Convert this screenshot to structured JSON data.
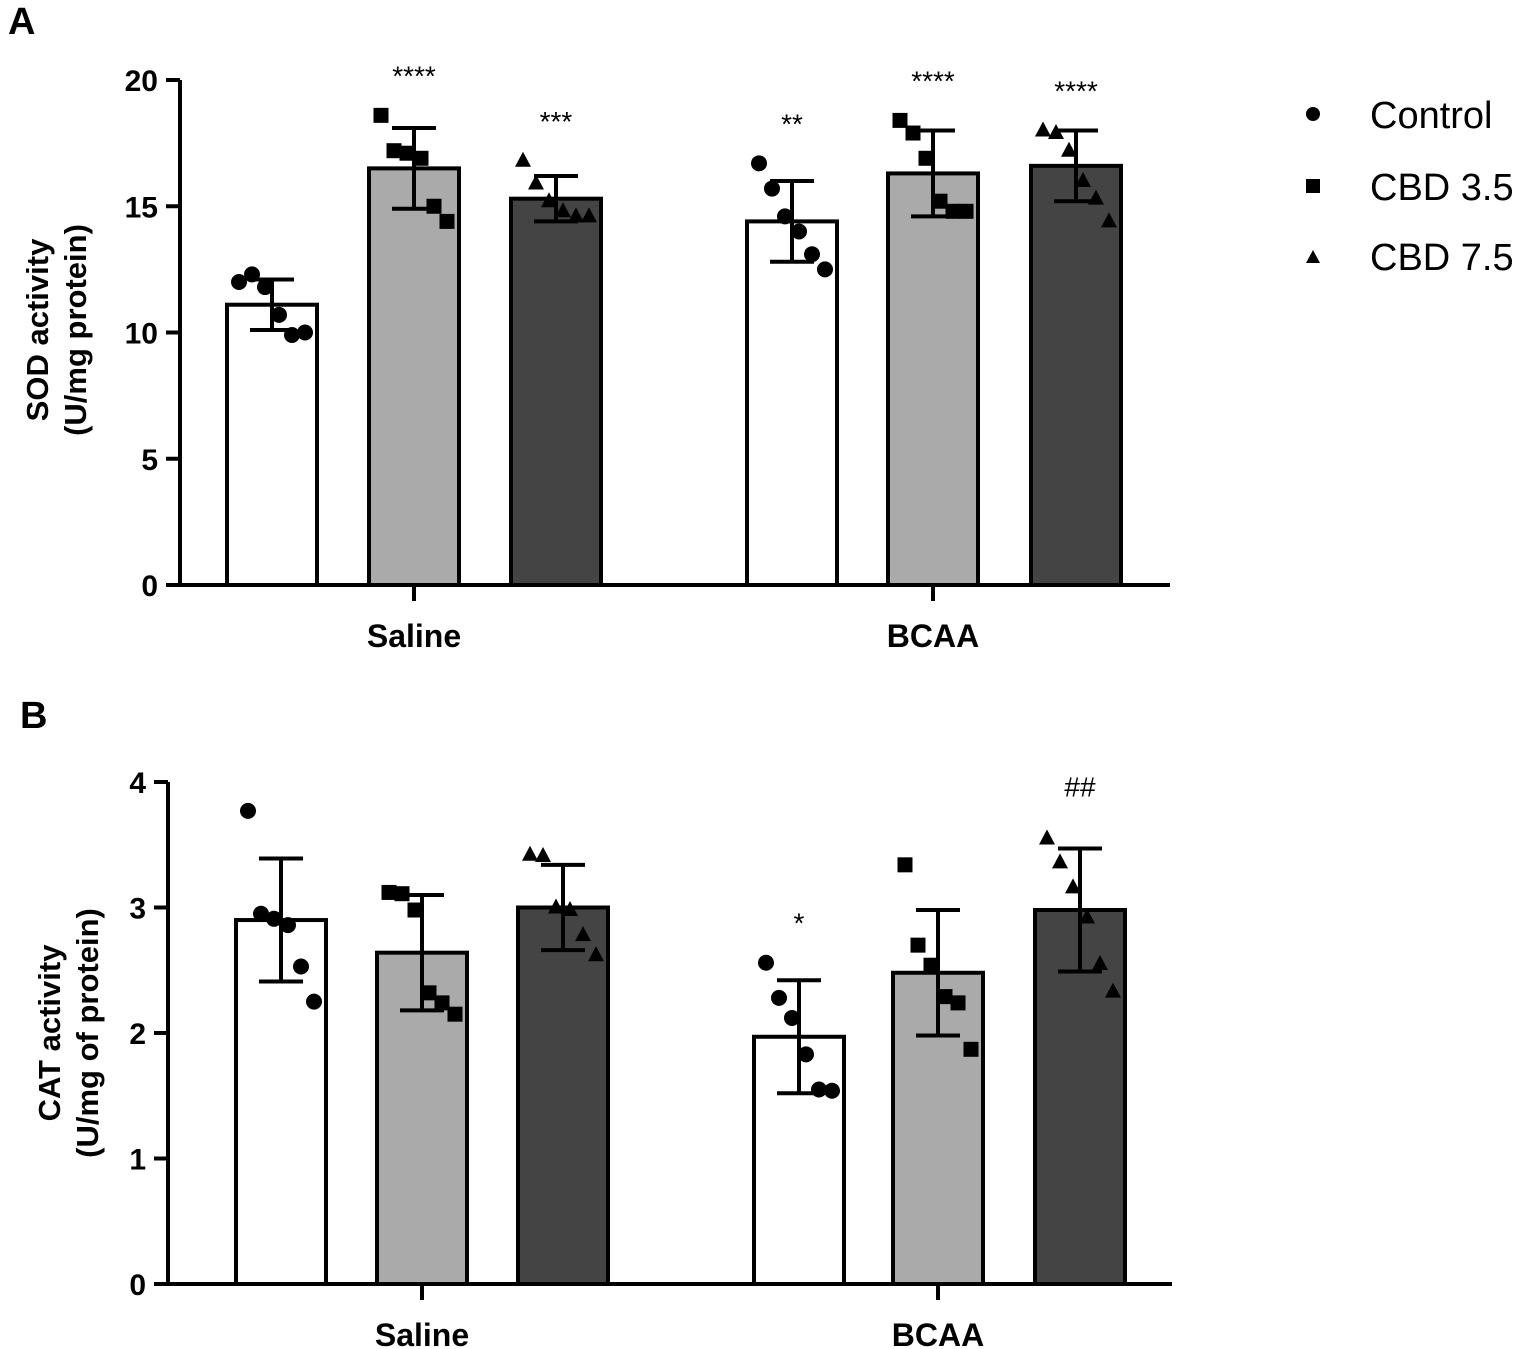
{
  "colors": {
    "control": "#ffffff",
    "cbd35": "#aaaaaa",
    "cbd75": "#444444",
    "stroke": "#000000"
  },
  "legend": {
    "placement": "top-right",
    "items": [
      {
        "label": "Control",
        "marker": "circle"
      },
      {
        "label": "CBD 3.5",
        "marker": "square"
      },
      {
        "label": "CBD 7.5",
        "marker": "triangle"
      }
    ]
  },
  "chart_data": [
    {
      "panel": "A",
      "type": "bar",
      "ylabel": [
        "SOD activity",
        "(U/mg protein)"
      ],
      "ylim": [
        0,
        20
      ],
      "yticks": [
        0,
        5,
        10,
        15,
        20
      ],
      "groups": [
        "Saline",
        "BCAA"
      ],
      "series": [
        {
          "name": "Control",
          "marker": "circle",
          "color_key": "control",
          "means": [
            11.1,
            14.4
          ],
          "sd": [
            1.0,
            1.6
          ],
          "significance": [
            "",
            "**"
          ],
          "points": [
            [
              12.0,
              12.3,
              11.8,
              10.7,
              9.9,
              10.0
            ],
            [
              16.7,
              15.7,
              14.6,
              14.0,
              13.1,
              12.5
            ]
          ]
        },
        {
          "name": "CBD 3.5",
          "marker": "square",
          "color_key": "cbd35",
          "means": [
            16.5,
            16.3
          ],
          "sd": [
            1.6,
            1.7
          ],
          "significance": [
            "****",
            "****"
          ],
          "points": [
            [
              18.6,
              17.2,
              17.1,
              16.9,
              15.0,
              14.4
            ],
            [
              18.4,
              17.9,
              16.9,
              15.2,
              14.8,
              14.8
            ]
          ]
        },
        {
          "name": "CBD 7.5",
          "marker": "triangle",
          "color_key": "cbd75",
          "means": [
            15.3,
            16.6
          ],
          "sd": [
            0.9,
            1.4
          ],
          "significance": [
            "***",
            "****"
          ],
          "points": [
            [
              16.8,
              15.9,
              15.2,
              14.8,
              14.6,
              14.6
            ],
            [
              18.0,
              17.9,
              17.2,
              16.0,
              15.3,
              14.4
            ]
          ]
        }
      ]
    },
    {
      "panel": "B",
      "type": "bar",
      "ylabel": [
        "CAT activity",
        "(U/mg of protein)"
      ],
      "ylim": [
        0,
        4
      ],
      "yticks": [
        0,
        1,
        2,
        3,
        4
      ],
      "groups": [
        "Saline",
        "BCAA"
      ],
      "series": [
        {
          "name": "Control",
          "marker": "circle",
          "color_key": "control",
          "means": [
            2.9,
            1.97
          ],
          "sd": [
            0.49,
            0.45
          ],
          "significance": [
            "",
            "*"
          ],
          "points": [
            [
              3.77,
              2.95,
              2.91,
              2.86,
              2.53,
              2.25
            ],
            [
              2.56,
              2.28,
              2.12,
              1.83,
              1.55,
              1.54
            ]
          ]
        },
        {
          "name": "CBD 3.5",
          "marker": "square",
          "color_key": "cbd35",
          "means": [
            2.64,
            2.48
          ],
          "sd": [
            0.46,
            0.5
          ],
          "significance": [
            "",
            ""
          ],
          "points": [
            [
              3.12,
              3.11,
              2.98,
              2.32,
              2.24,
              2.15
            ],
            [
              3.34,
              2.7,
              2.54,
              2.29,
              2.24,
              1.87
            ]
          ]
        },
        {
          "name": "CBD 7.5",
          "marker": "triangle",
          "color_key": "cbd75",
          "means": [
            3.0,
            2.98
          ],
          "sd": [
            0.34,
            0.49
          ],
          "significance": [
            "",
            "##"
          ],
          "points": [
            [
              3.42,
              3.41,
              3.0,
              2.98,
              2.78,
              2.62
            ],
            [
              3.55,
              3.36,
              3.16,
              2.92,
              2.55,
              2.33
            ]
          ]
        }
      ]
    }
  ]
}
